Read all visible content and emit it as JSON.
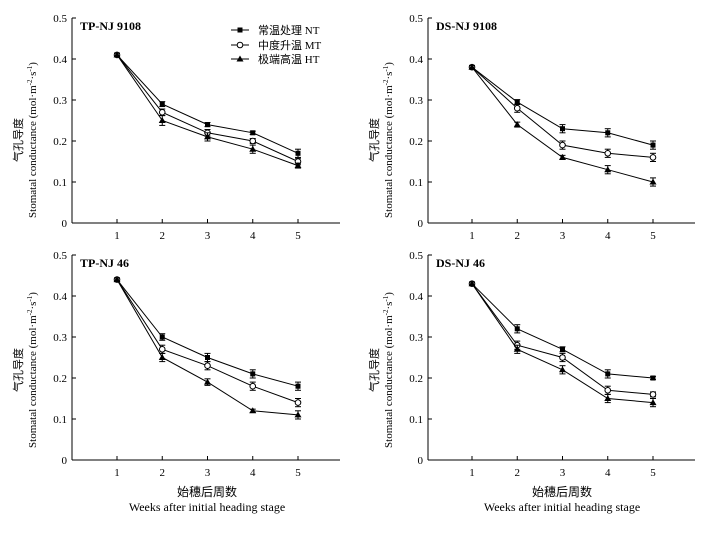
{
  "figure": {
    "x_label_cn": "始穗后周数",
    "x_label_en": "Weeks after initial heading stage",
    "y_label_cn": "气孔导度",
    "y_label_en": "Stomatal conductance (mol·m",
    "y_label_sup1": "-2",
    "y_label_mid": "·s",
    "y_label_sup2": "-1",
    "y_label_end": ")"
  },
  "legend": {
    "items": [
      {
        "label": "常温处理 NT",
        "marker": "square-filled"
      },
      {
        "label": "中度升温 MT",
        "marker": "circle-open"
      },
      {
        "label": "极端高温 HT",
        "marker": "triangle-filled"
      }
    ]
  },
  "chart_data": [
    {
      "type": "line",
      "title": "TP-NJ 9108",
      "x": [
        1,
        2,
        3,
        4,
        5
      ],
      "x_ticks": [
        "1",
        "2",
        "3",
        "4",
        "5"
      ],
      "ylim": [
        0,
        0.5
      ],
      "y_ticks": [
        "0",
        "0.1",
        "0.2",
        "0.3",
        "0.4",
        "0.5"
      ],
      "series": [
        {
          "name": "常温处理 NT",
          "marker": "square-filled",
          "values": [
            0.41,
            0.29,
            0.24,
            0.22,
            0.17
          ],
          "errors": [
            0.004,
            0.006,
            0.005,
            0.004,
            0.01
          ]
        },
        {
          "name": "中度升温 MT",
          "marker": "circle-open",
          "values": [
            0.41,
            0.27,
            0.22,
            0.2,
            0.15
          ],
          "errors": [
            0.004,
            0.008,
            0.008,
            0.006,
            0.008
          ]
        },
        {
          "name": "极端高温 HT",
          "marker": "triangle-filled",
          "values": [
            0.41,
            0.25,
            0.21,
            0.18,
            0.14
          ],
          "errors": [
            0.004,
            0.012,
            0.01,
            0.01,
            0.006
          ]
        }
      ]
    },
    {
      "type": "line",
      "title": "DS-NJ 9108",
      "x": [
        1,
        2,
        3,
        4,
        5
      ],
      "x_ticks": [
        "1",
        "2",
        "3",
        "4",
        "5"
      ],
      "ylim": [
        0,
        0.5
      ],
      "y_ticks": [
        "0",
        "0.1",
        "0.2",
        "0.3",
        "0.4",
        "0.5"
      ],
      "series": [
        {
          "name": "常温处理 NT",
          "marker": "square-filled",
          "values": [
            0.38,
            0.295,
            0.23,
            0.22,
            0.19
          ],
          "errors": [
            0.004,
            0.006,
            0.01,
            0.01,
            0.01
          ]
        },
        {
          "name": "中度升温 MT",
          "marker": "circle-open",
          "values": [
            0.38,
            0.28,
            0.19,
            0.17,
            0.16
          ],
          "errors": [
            0.004,
            0.01,
            0.01,
            0.01,
            0.01
          ]
        },
        {
          "name": "极端高温 HT",
          "marker": "triangle-filled",
          "values": [
            0.38,
            0.24,
            0.16,
            0.13,
            0.1
          ],
          "errors": [
            0.004,
            0.006,
            0.005,
            0.01,
            0.01
          ]
        }
      ]
    },
    {
      "type": "line",
      "title": "TP-NJ 46",
      "x": [
        1,
        2,
        3,
        4,
        5
      ],
      "x_ticks": [
        "1",
        "2",
        "3",
        "4",
        "5"
      ],
      "ylim": [
        0,
        0.5
      ],
      "y_ticks": [
        "0",
        "0.1",
        "0.2",
        "0.3",
        "0.4",
        "0.5"
      ],
      "series": [
        {
          "name": "常温处理 NT",
          "marker": "square-filled",
          "values": [
            0.44,
            0.3,
            0.25,
            0.21,
            0.18
          ],
          "errors": [
            0.004,
            0.008,
            0.01,
            0.01,
            0.01
          ]
        },
        {
          "name": "中度升温 MT",
          "marker": "circle-open",
          "values": [
            0.44,
            0.27,
            0.23,
            0.18,
            0.14
          ],
          "errors": [
            0.004,
            0.01,
            0.01,
            0.01,
            0.01
          ]
        },
        {
          "name": "极端高温 HT",
          "marker": "triangle-filled",
          "values": [
            0.44,
            0.25,
            0.19,
            0.12,
            0.11
          ],
          "errors": [
            0.004,
            0.01,
            0.008,
            0.004,
            0.01
          ]
        }
      ]
    },
    {
      "type": "line",
      "title": "DS-NJ 46",
      "x": [
        1,
        2,
        3,
        4,
        5
      ],
      "x_ticks": [
        "1",
        "2",
        "3",
        "4",
        "5"
      ],
      "ylim": [
        0,
        0.5
      ],
      "y_ticks": [
        "0",
        "0.1",
        "0.2",
        "0.3",
        "0.4",
        "0.5"
      ],
      "series": [
        {
          "name": "常温处理 NT",
          "marker": "square-filled",
          "values": [
            0.43,
            0.32,
            0.27,
            0.21,
            0.2
          ],
          "errors": [
            0.004,
            0.01,
            0.006,
            0.01,
            0.004
          ]
        },
        {
          "name": "中度升温 MT",
          "marker": "circle-open",
          "values": [
            0.43,
            0.28,
            0.25,
            0.17,
            0.16
          ],
          "errors": [
            0.004,
            0.01,
            0.01,
            0.01,
            0.006
          ]
        },
        {
          "name": "极端高温 HT",
          "marker": "triangle-filled",
          "values": [
            0.43,
            0.27,
            0.22,
            0.15,
            0.14
          ],
          "errors": [
            0.004,
            0.01,
            0.01,
            0.01,
            0.01
          ]
        }
      ]
    }
  ]
}
